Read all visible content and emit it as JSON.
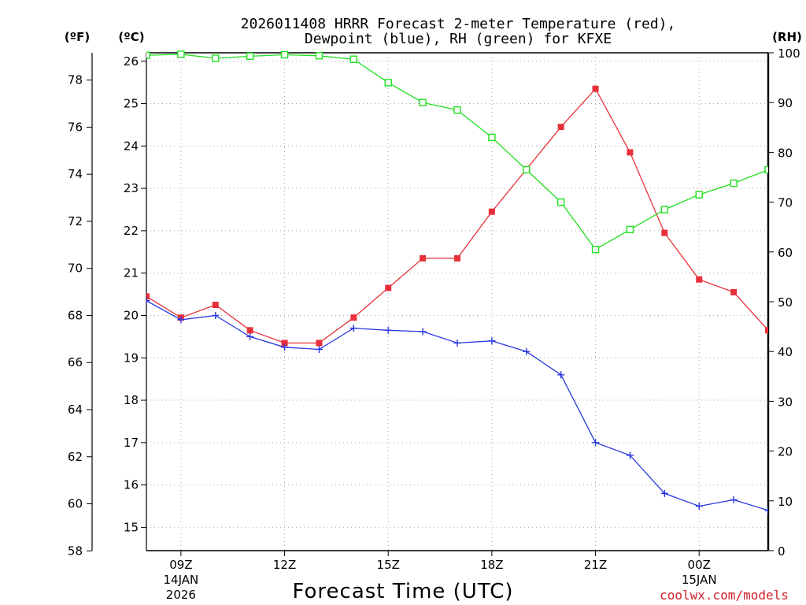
{
  "chart_data": {
    "type": "line",
    "title": [
      "2026011408 HRRR Forecast 2-meter Temperature (red),",
      "Dewpoint (blue), RH (green) for KFXE"
    ],
    "axis_units": {
      "left_f": "(ºF)",
      "left_c": "(ºC)",
      "right": "(RH)"
    },
    "xlabel": "Forecast Time (UTC)",
    "credit": "coolwx.com/models",
    "x_hours": [
      8,
      9,
      10,
      11,
      12,
      13,
      14,
      15,
      16,
      17,
      18,
      19,
      20,
      21,
      22,
      23,
      24,
      25,
      26
    ],
    "xlim": [
      8,
      26
    ],
    "x_ticks": [
      {
        "x": 9,
        "label": "09Z",
        "date": "14JAN",
        "year": "2026"
      },
      {
        "x": 12,
        "label": "12Z"
      },
      {
        "x": 15,
        "label": "15Z"
      },
      {
        "x": 18,
        "label": "18Z"
      },
      {
        "x": 21,
        "label": "21Z"
      },
      {
        "x": 24,
        "label": "00Z",
        "date": "15JAN"
      }
    ],
    "temp_c_range": [
      14.45,
      26.2
    ],
    "c_ticks": [
      "15",
      "16",
      "17",
      "18",
      "19",
      "20",
      "21",
      "22",
      "23",
      "24",
      "25",
      "26"
    ],
    "f_ticks": [
      "58",
      "60",
      "62",
      "64",
      "66",
      "68",
      "70",
      "72",
      "74",
      "76",
      "78"
    ],
    "rh_ticks": [
      "0",
      "10",
      "20",
      "30",
      "40",
      "50",
      "60",
      "70",
      "80",
      "90",
      "100"
    ],
    "rh_range": [
      0,
      100
    ],
    "series": [
      {
        "name": "Temperature",
        "unit": "C",
        "color": "#e8303a",
        "marker": "filled-square",
        "values": [
          20.45,
          19.95,
          20.25,
          19.65,
          19.35,
          19.35,
          19.95,
          20.65,
          21.35,
          21.35,
          22.45,
          23.45,
          24.45,
          25.35,
          23.85,
          21.95,
          20.85,
          20.55,
          19.65
        ]
      },
      {
        "name": "Dewpoint",
        "unit": "C",
        "color": "#2838e0",
        "marker": "plus",
        "values": [
          20.35,
          19.9,
          20.0,
          19.5,
          19.25,
          19.2,
          19.7,
          19.65,
          19.62,
          19.35,
          19.4,
          19.15,
          18.6,
          17.0,
          16.7,
          15.8,
          15.5,
          15.65,
          15.4
        ]
      },
      {
        "name": "RH",
        "unit": "%",
        "color": "#20e020",
        "marker": "open-square",
        "values": [
          99.5,
          99.7,
          98.9,
          99.3,
          99.6,
          99.4,
          98.7,
          94.0,
          90.0,
          88.5,
          83.0,
          76.5,
          70.0,
          60.5,
          64.5,
          68.5,
          71.5,
          73.8,
          76.5
        ]
      }
    ]
  }
}
